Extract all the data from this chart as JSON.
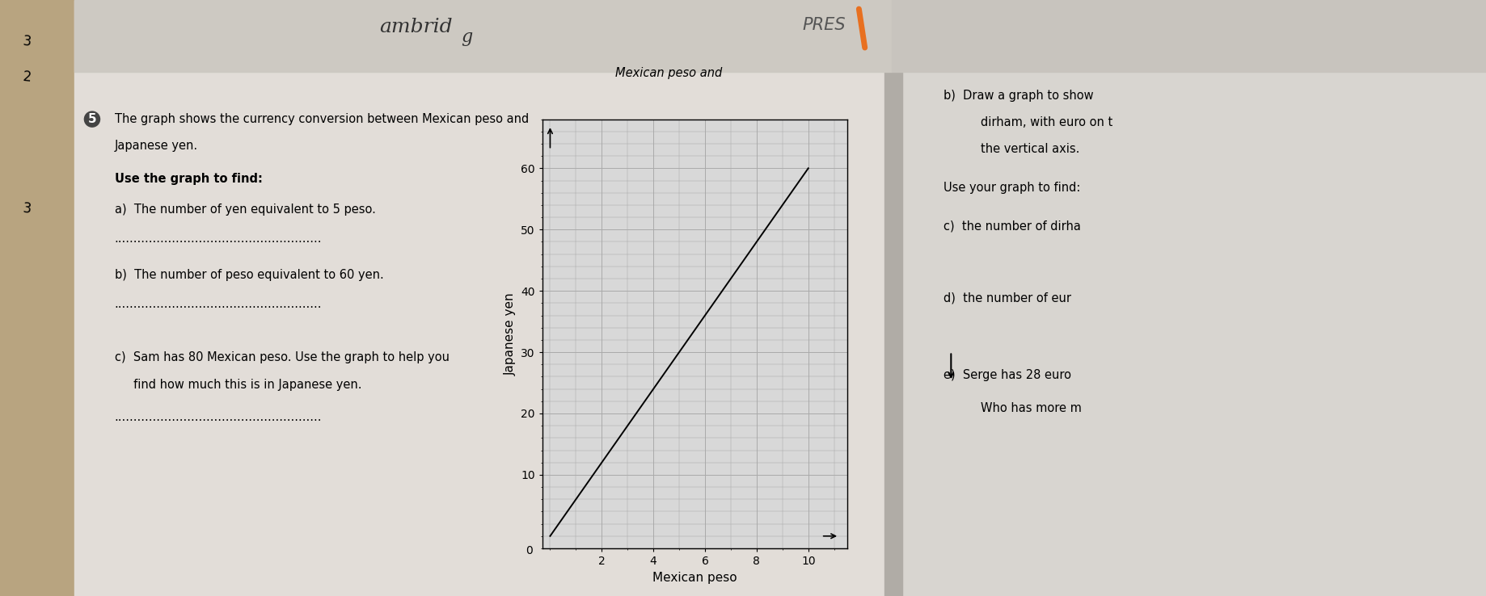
{
  "xlabel": "Mexican peso",
  "ylabel": "Japanese yen",
  "x_data": [
    0,
    10
  ],
  "y_data": [
    0,
    60
  ],
  "xlim": [
    -0.3,
    11.5
  ],
  "ylim": [
    -2,
    68
  ],
  "xticks": [
    2,
    4,
    6,
    8,
    10
  ],
  "yticks": [
    10,
    20,
    30,
    40,
    50,
    60
  ],
  "grid_color": "#aaaaaa",
  "line_color": "#000000",
  "axis_color": "#000000",
  "graph_bg": "#d8d8d8",
  "page_color_left": "#c8b89a",
  "page_color_right": "#dcdcdc",
  "page_color_center": "#e8e6e0",
  "xlabel_fontsize": 11,
  "ylabel_fontsize": 11,
  "tick_fontsize": 10,
  "text_fontsize": 10.5,
  "heading_fontsize": 10.5
}
